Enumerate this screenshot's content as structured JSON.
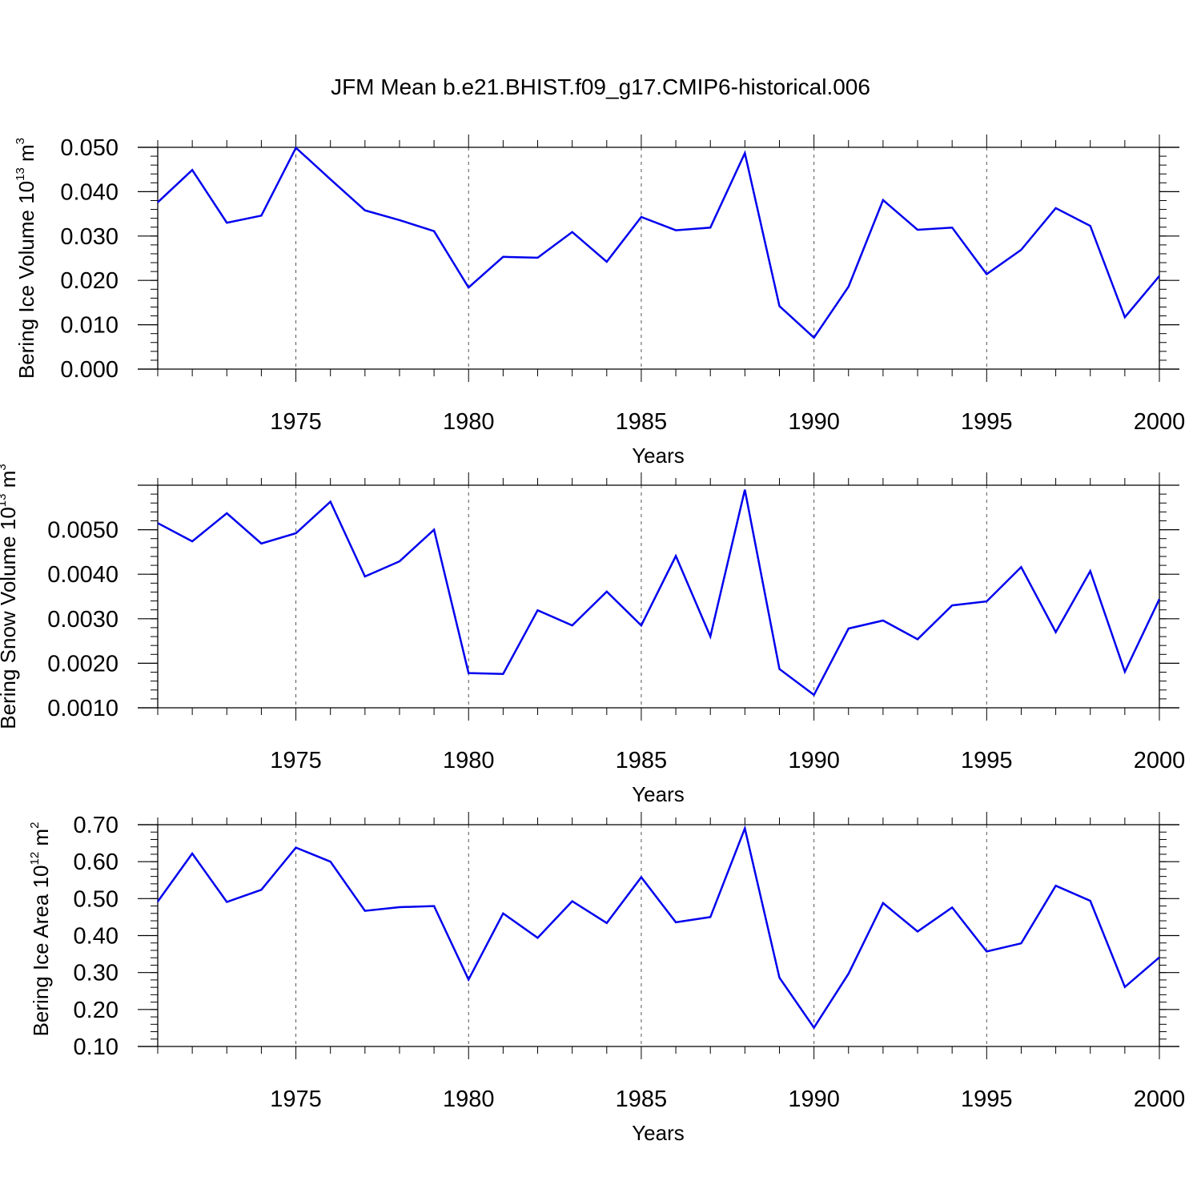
{
  "title": "JFM Mean b.e21.BHIST.f09_g17.CMIP6-historical.006",
  "colors": {
    "line": "#0000ee",
    "axis": "#000000",
    "grid": "#555555"
  },
  "chart_data": [
    {
      "type": "line",
      "ylabel": {
        "text": "Bering Ice Volume 10",
        "exp": "13",
        "unit": " m",
        "unit_exp": "3"
      },
      "xlabel": "Years",
      "xlim": [
        1971,
        2000
      ],
      "ylim": [
        0,
        0.05
      ],
      "yticks": [
        "0.000",
        "0.010",
        "0.020",
        "0.030",
        "0.040",
        "0.050"
      ],
      "xticks": [
        "1975",
        "1980",
        "1985",
        "1990",
        "1995",
        "2000"
      ],
      "grid": "vertical dashed at major x ticks",
      "x": [
        1971,
        1972,
        1973,
        1974,
        1975,
        1976,
        1977,
        1978,
        1979,
        1980,
        1981,
        1982,
        1983,
        1984,
        1985,
        1986,
        1987,
        1988,
        1989,
        1990,
        1991,
        1992,
        1993,
        1994,
        1995,
        1996,
        1997,
        1998,
        1999,
        2000
      ],
      "values": [
        0.0376,
        0.0449,
        0.033,
        0.0346,
        0.0499,
        0.0428,
        0.0358,
        0.0336,
        0.0311,
        0.0184,
        0.0253,
        0.0251,
        0.0309,
        0.0242,
        0.0343,
        0.0313,
        0.0319,
        0.0487,
        0.0142,
        0.0071,
        0.0186,
        0.0381,
        0.0314,
        0.0319,
        0.0214,
        0.0269,
        0.0363,
        0.0323,
        0.0117,
        0.021
      ]
    },
    {
      "type": "line",
      "ylabel": {
        "text": "Bering Snow Volume 10",
        "exp": "13",
        "unit": " m",
        "unit_exp": "3"
      },
      "xlabel": "Years",
      "xlim": [
        1971,
        2000
      ],
      "ylim": [
        0.001,
        0.006
      ],
      "yticks": [
        "0.0010",
        "0.0020",
        "0.0030",
        "0.0040",
        "0.0050"
      ],
      "xticks": [
        "1975",
        "1980",
        "1985",
        "1990",
        "1995",
        "2000"
      ],
      "grid": "vertical dashed at major x ticks",
      "x": [
        1971,
        1972,
        1973,
        1974,
        1975,
        1976,
        1977,
        1978,
        1979,
        1980,
        1981,
        1982,
        1983,
        1984,
        1985,
        1986,
        1987,
        1988,
        1989,
        1990,
        1991,
        1992,
        1993,
        1994,
        1995,
        1996,
        1997,
        1998,
        1999,
        2000
      ],
      "values": [
        0.00515,
        0.00474,
        0.00537,
        0.00469,
        0.00492,
        0.00563,
        0.00395,
        0.00429,
        0.005,
        0.00178,
        0.00176,
        0.00319,
        0.00285,
        0.00361,
        0.00285,
        0.00441,
        0.0026,
        0.0059,
        0.00187,
        0.00129,
        0.00278,
        0.00296,
        0.00254,
        0.0033,
        0.00339,
        0.00416,
        0.0027,
        0.00407,
        0.00181,
        0.00344
      ]
    },
    {
      "type": "line",
      "ylabel": {
        "text": "Bering Ice Area 10",
        "exp": "12",
        "unit": " m",
        "unit_exp": "2"
      },
      "xlabel": "Years",
      "xlim": [
        1971,
        2000
      ],
      "ylim": [
        0.1,
        0.7
      ],
      "yticks": [
        "0.10",
        "0.20",
        "0.30",
        "0.40",
        "0.50",
        "0.60",
        "0.70"
      ],
      "xticks": [
        "1975",
        "1980",
        "1985",
        "1990",
        "1995",
        "2000"
      ],
      "grid": "vertical dashed at major x ticks",
      "x": [
        1971,
        1972,
        1973,
        1974,
        1975,
        1976,
        1977,
        1978,
        1979,
        1980,
        1981,
        1982,
        1983,
        1984,
        1985,
        1986,
        1987,
        1988,
        1989,
        1990,
        1991,
        1992,
        1993,
        1994,
        1995,
        1996,
        1997,
        1998,
        1999,
        2000
      ],
      "values": [
        0.492,
        0.622,
        0.491,
        0.524,
        0.638,
        0.6,
        0.467,
        0.477,
        0.48,
        0.281,
        0.46,
        0.394,
        0.493,
        0.434,
        0.558,
        0.436,
        0.45,
        0.69,
        0.286,
        0.151,
        0.297,
        0.488,
        0.411,
        0.476,
        0.357,
        0.379,
        0.535,
        0.494,
        0.261,
        0.341
      ]
    }
  ]
}
